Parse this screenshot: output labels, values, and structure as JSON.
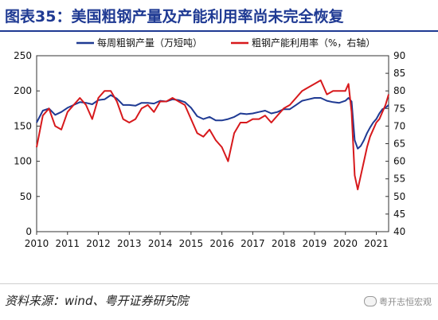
{
  "title": "图表35：美国粗钢产量及产能利用率尚未完全恢复",
  "source": "资料来源：wind、粤开证券研究院",
  "watermark": "粤开志恒宏观",
  "chart_data": {
    "type": "line",
    "legend_placement": "top",
    "grid": false,
    "x_ticks": [
      "2010",
      "2011",
      "2012",
      "2013",
      "2014",
      "2015",
      "2016",
      "2017",
      "2018",
      "2019",
      "2020",
      "2021"
    ],
    "xlim": [
      2010.0,
      2021.4
    ],
    "y_left": {
      "lim": [
        0,
        250
      ],
      "ticks": [
        "0",
        "50",
        "100",
        "150",
        "200",
        "250"
      ]
    },
    "y_right": {
      "lim": [
        40,
        90
      ],
      "ticks": [
        "40",
        "45",
        "50",
        "55",
        "60",
        "65",
        "70",
        "75",
        "80",
        "85",
        "90"
      ]
    },
    "series": [
      {
        "name": "每周粗钢产量（万短吨）",
        "axis": "left",
        "color": "#1f3a93",
        "x": [
          2010.0,
          2010.2,
          2010.4,
          2010.6,
          2010.8,
          2011.0,
          2011.2,
          2011.4,
          2011.6,
          2011.8,
          2012.0,
          2012.2,
          2012.4,
          2012.6,
          2012.8,
          2013.0,
          2013.2,
          2013.4,
          2013.6,
          2013.8,
          2014.0,
          2014.2,
          2014.4,
          2014.6,
          2014.8,
          2015.0,
          2015.2,
          2015.4,
          2015.6,
          2015.8,
          2016.0,
          2016.2,
          2016.4,
          2016.6,
          2016.8,
          2017.0,
          2017.2,
          2017.4,
          2017.6,
          2017.8,
          2018.0,
          2018.2,
          2018.4,
          2018.6,
          2018.8,
          2019.0,
          2019.2,
          2019.4,
          2019.6,
          2019.8,
          2020.0,
          2020.1,
          2020.2,
          2020.3,
          2020.4,
          2020.5,
          2020.6,
          2020.7,
          2020.8,
          2020.9,
          2021.0,
          2021.1,
          2021.2,
          2021.3,
          2021.4
        ],
        "y": [
          155,
          172,
          175,
          166,
          170,
          176,
          180,
          184,
          183,
          181,
          187,
          188,
          194,
          189,
          180,
          180,
          179,
          183,
          183,
          182,
          186,
          185,
          188,
          187,
          184,
          176,
          164,
          160,
          163,
          158,
          158,
          160,
          163,
          168,
          167,
          168,
          170,
          172,
          168,
          170,
          174,
          174,
          180,
          186,
          188,
          190,
          190,
          186,
          184,
          183,
          186,
          190,
          185,
          130,
          118,
          122,
          130,
          140,
          148,
          155,
          160,
          168,
          174,
          176,
          180
        ]
      },
      {
        "name": "粗钢产能利用率（%，右轴）",
        "axis": "right",
        "color": "#d7191c",
        "x": [
          2010.0,
          2010.2,
          2010.4,
          2010.6,
          2010.8,
          2011.0,
          2011.2,
          2011.4,
          2011.6,
          2011.8,
          2012.0,
          2012.2,
          2012.4,
          2012.6,
          2012.8,
          2013.0,
          2013.2,
          2013.4,
          2013.6,
          2013.8,
          2014.0,
          2014.2,
          2014.4,
          2014.6,
          2014.8,
          2015.0,
          2015.2,
          2015.4,
          2015.6,
          2015.8,
          2016.0,
          2016.2,
          2016.4,
          2016.6,
          2016.8,
          2017.0,
          2017.2,
          2017.4,
          2017.6,
          2017.8,
          2018.0,
          2018.2,
          2018.4,
          2018.6,
          2018.8,
          2019.0,
          2019.2,
          2019.4,
          2019.6,
          2019.8,
          2020.0,
          2020.1,
          2020.2,
          2020.3,
          2020.4,
          2020.5,
          2020.6,
          2020.7,
          2020.8,
          2020.9,
          2021.0,
          2021.1,
          2021.2,
          2021.3,
          2021.4
        ],
        "y": [
          64,
          73,
          75,
          70,
          69,
          74,
          76,
          78,
          76,
          72,
          78,
          80,
          80,
          77,
          72,
          71,
          72,
          75,
          76,
          74,
          77,
          77,
          78,
          77,
          76,
          72,
          68,
          67,
          69,
          66,
          64,
          60,
          68,
          71,
          71,
          72,
          72,
          73,
          71,
          73,
          75,
          76,
          78,
          80,
          81,
          82,
          83,
          79,
          80,
          80,
          80,
          82,
          74,
          56,
          52,
          56,
          60,
          64,
          67,
          69,
          71,
          72,
          74,
          76,
          79
        ]
      }
    ]
  }
}
